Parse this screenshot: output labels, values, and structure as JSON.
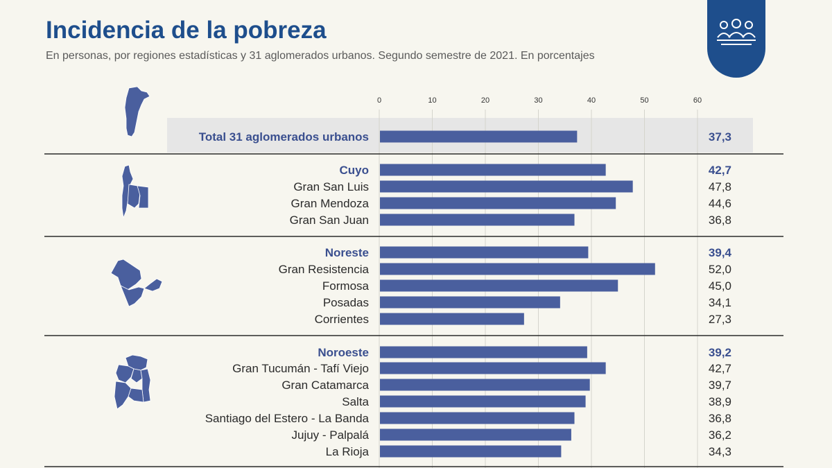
{
  "header": {
    "title": "Incidencia de la pobreza",
    "subtitle": "En personas, por regiones estadísticas y 31 aglomerados urbanos. Segundo semestre de 2021. En porcentajes",
    "badge_icon": "people-group-icon"
  },
  "colors": {
    "title": "#1e4e8c",
    "bar": "#4a5f9e",
    "region_label": "#3a4f8f",
    "total_band": "#e6e6e6",
    "badge": "#1e4e8c"
  },
  "chart_data": {
    "type": "bar",
    "orientation": "horizontal",
    "xlim": [
      0,
      60
    ],
    "ticks": [
      0,
      10,
      20,
      30,
      40,
      50,
      60
    ],
    "grid": true,
    "categories": [
      "Total 31 aglomerados urbanos",
      "Cuyo",
      "Gran San Luis",
      "Gran Mendoza",
      "Gran San Juan",
      "Noreste",
      "Gran Resistencia",
      "Formosa",
      "Posadas",
      "Corrientes",
      "Noroeste",
      "Gran Tucumán - Tafí Viejo",
      "Gran Catamarca",
      "Salta",
      "Santiago del Estero - La Banda",
      "Jujuy -  Palpalá",
      "La Rioja"
    ],
    "values": [
      37.3,
      42.7,
      47.8,
      44.6,
      36.8,
      39.4,
      52.0,
      45.0,
      34.1,
      27.3,
      39.2,
      42.7,
      39.7,
      38.9,
      36.8,
      36.2,
      34.3
    ],
    "value_labels": [
      "37,3",
      "42,7",
      "47,8",
      "44,6",
      "36,8",
      "39,4",
      "52,0",
      "45,0",
      "34,1",
      "27,3",
      "39,2",
      "42,7",
      "39,7",
      "38,9",
      "36,8",
      "36,2",
      "34,3"
    ],
    "kind": [
      "total",
      "region",
      "city",
      "city",
      "city",
      "region",
      "city",
      "city",
      "city",
      "city",
      "region",
      "city",
      "city",
      "city",
      "city",
      "city",
      "city"
    ]
  },
  "groups": [
    {
      "name": "total",
      "icon": "argentina-map-icon"
    },
    {
      "name": "Cuyo",
      "icon": "cuyo-map-icon"
    },
    {
      "name": "Noreste",
      "icon": "noreste-map-icon"
    },
    {
      "name": "Noroeste",
      "icon": "noroeste-map-icon"
    }
  ]
}
